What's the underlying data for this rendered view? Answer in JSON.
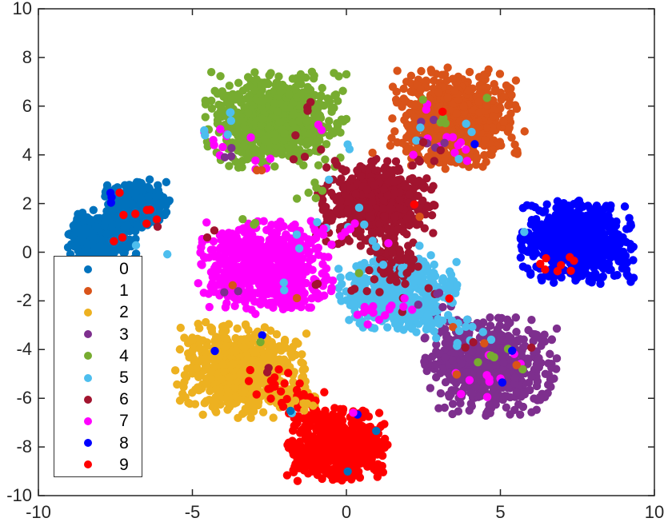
{
  "figure": {
    "background_color": "#ffffff",
    "axis_color": "#262626",
    "legend_border_color": "#333333",
    "legend_background": "#ffffff"
  },
  "chart_data": {
    "type": "scatter",
    "title": "",
    "xlabel": "",
    "ylabel": "",
    "xlim": [
      -10,
      10
    ],
    "ylim": [
      -10,
      10
    ],
    "x_ticks": [
      -10,
      -5,
      0,
      5,
      10
    ],
    "y_ticks": [
      -10,
      -8,
      -6,
      -4,
      -2,
      0,
      2,
      4,
      6,
      8,
      10
    ],
    "grid": false,
    "marker_radius_px": 5.2,
    "legend": {
      "position": "lower-left",
      "entries": [
        {
          "label": "0",
          "color": "#0072BD"
        },
        {
          "label": "1",
          "color": "#D95319"
        },
        {
          "label": "2",
          "color": "#EDB120"
        },
        {
          "label": "3",
          "color": "#7E2F8E"
        },
        {
          "label": "4",
          "color": "#77AC30"
        },
        {
          "label": "5",
          "color": "#4DBEEE"
        },
        {
          "label": "6",
          "color": "#A2142F"
        },
        {
          "label": "7",
          "color": "#FF00FF"
        },
        {
          "label": "8",
          "color": "#0000FF"
        },
        {
          "label": "9",
          "color": "#FF0000"
        }
      ]
    },
    "class_colors": [
      "#0072BD",
      "#D95319",
      "#EDB120",
      "#7E2F8E",
      "#77AC30",
      "#4DBEEE",
      "#A2142F",
      "#FF00FF",
      "#0000FF",
      "#FF0000"
    ],
    "clusters": [
      {
        "cls": 0,
        "center": [
          -7.92,
          0.65
        ],
        "sigma": [
          0.52,
          0.55
        ],
        "n": 330
      },
      {
        "cls": 0,
        "center": [
          -6.78,
          2.0
        ],
        "sigma": [
          0.5,
          0.46
        ],
        "n": 300
      },
      {
        "cls": 1,
        "center": [
          3.6,
          5.5
        ],
        "sigma": [
          1.0,
          0.95
        ],
        "n": 660
      },
      {
        "cls": 2,
        "center": [
          -3.4,
          -4.85
        ],
        "sigma": [
          0.98,
          0.9
        ],
        "n": 640
      },
      {
        "cls": 2,
        "center": [
          -1.45,
          -6.15
        ],
        "sigma": [
          0.45,
          0.33
        ],
        "n": 10
      },
      {
        "cls": 3,
        "center": [
          4.65,
          -4.7
        ],
        "sigma": [
          1.0,
          0.92
        ],
        "n": 620
      },
      {
        "cls": 3,
        "center": [
          3.3,
          -3.05
        ],
        "sigma": [
          0.5,
          0.4
        ],
        "n": 12
      },
      {
        "cls": 4,
        "center": [
          -2.29,
          5.45
        ],
        "sigma": [
          1.05,
          0.92
        ],
        "n": 670
      },
      {
        "cls": 5,
        "center": [
          1.66,
          -1.7
        ],
        "sigma": [
          0.88,
          0.72
        ],
        "n": 540
      },
      {
        "cls": 5,
        "center": [
          3.3,
          -3.0
        ],
        "sigma": [
          0.45,
          0.35
        ],
        "n": 14
      },
      {
        "cls": 6,
        "center": [
          0.9,
          2.05
        ],
        "sigma": [
          0.9,
          0.82
        ],
        "n": 640
      },
      {
        "cls": 6,
        "center": [
          1.45,
          -0.2
        ],
        "sigma": [
          0.38,
          0.55
        ],
        "n": 55
      },
      {
        "cls": 7,
        "center": [
          -2.62,
          -0.65
        ],
        "sigma": [
          1.0,
          0.88
        ],
        "n": 670
      },
      {
        "cls": 8,
        "center": [
          7.51,
          0.4
        ],
        "sigma": [
          0.85,
          0.82
        ],
        "n": 640
      },
      {
        "cls": 9,
        "center": [
          -0.34,
          -7.9
        ],
        "sigma": [
          0.77,
          0.7
        ],
        "n": 640
      },
      {
        "cls": 9,
        "center": [
          -1.45,
          -6.2
        ],
        "sigma": [
          0.5,
          0.4
        ],
        "n": 28
      }
    ],
    "impurity_groups": [
      {
        "cls": 9,
        "center": [
          -6.9,
          1.5
        ],
        "sigma": [
          0.45,
          0.55
        ],
        "n": 9
      },
      {
        "cls": 8,
        "center": [
          -7.7,
          2.2
        ],
        "sigma": [
          0.15,
          0.15
        ],
        "n": 3
      },
      {
        "cls": 6,
        "center": [
          -6.1,
          1.05
        ],
        "sigma": [
          0.05,
          0.05
        ],
        "n": 1
      },
      {
        "cls": 5,
        "center": [
          -5.9,
          -0.1
        ],
        "sigma": [
          0.05,
          0.05
        ],
        "n": 1
      },
      {
        "cls": 5,
        "center": [
          -6.8,
          0.3
        ],
        "sigma": [
          0.05,
          0.05
        ],
        "n": 1
      },
      {
        "cls": 7,
        "center": [
          -3.9,
          4.8
        ],
        "sigma": [
          0.45,
          0.65
        ],
        "n": 9
      },
      {
        "cls": 7,
        "center": [
          -2.3,
          3.75
        ],
        "sigma": [
          0.45,
          0.25
        ],
        "n": 4
      },
      {
        "cls": 7,
        "center": [
          -0.9,
          5.3
        ],
        "sigma": [
          0.15,
          0.25
        ],
        "n": 2
      },
      {
        "cls": 5,
        "center": [
          -4.1,
          5.1
        ],
        "sigma": [
          0.35,
          0.5
        ],
        "n": 6
      },
      {
        "cls": 5,
        "center": [
          0.1,
          4.3
        ],
        "sigma": [
          0.15,
          0.2
        ],
        "n": 2
      },
      {
        "cls": 6,
        "center": [
          -1.3,
          5.1
        ],
        "sigma": [
          0.4,
          0.8
        ],
        "n": 7
      },
      {
        "cls": 3,
        "center": [
          -4.0,
          3.9
        ],
        "sigma": [
          0.28,
          0.28
        ],
        "n": 3
      },
      {
        "cls": 1,
        "center": [
          -2.55,
          3.45
        ],
        "sigma": [
          0.3,
          0.18
        ],
        "n": 2
      },
      {
        "cls": 7,
        "center": [
          3.3,
          4.2
        ],
        "sigma": [
          0.6,
          0.3
        ],
        "n": 10
      },
      {
        "cls": 7,
        "center": [
          2.6,
          6.0
        ],
        "sigma": [
          0.15,
          0.15
        ],
        "n": 2
      },
      {
        "cls": 3,
        "center": [
          2.75,
          4.75
        ],
        "sigma": [
          0.45,
          0.65
        ],
        "n": 6
      },
      {
        "cls": 5,
        "center": [
          3.1,
          4.75
        ],
        "sigma": [
          0.55,
          0.5
        ],
        "n": 5
      },
      {
        "cls": 4,
        "center": [
          3.3,
          5.0
        ],
        "sigma": [
          0.8,
          0.7
        ],
        "n": 5
      },
      {
        "cls": 6,
        "center": [
          2.9,
          4.35
        ],
        "sigma": [
          0.25,
          0.25
        ],
        "n": 2
      },
      {
        "cls": 9,
        "center": [
          3.1,
          5.85
        ],
        "sigma": [
          0.05,
          0.05
        ],
        "n": 1
      },
      {
        "cls": 8,
        "center": [
          4.2,
          4.5
        ],
        "sigma": [
          0.05,
          0.05
        ],
        "n": 1
      },
      {
        "cls": 5,
        "center": [
          0.3,
          1.05
        ],
        "sigma": [
          0.45,
          0.55
        ],
        "n": 5
      },
      {
        "cls": 5,
        "center": [
          -0.65,
          2.9
        ],
        "sigma": [
          0.08,
          0.08
        ],
        "n": 1
      },
      {
        "cls": 5,
        "center": [
          -1.05,
          1.2
        ],
        "sigma": [
          0.08,
          0.08
        ],
        "n": 1
      },
      {
        "cls": 5,
        "center": [
          1.3,
          -0.1
        ],
        "sigma": [
          0.5,
          0.4
        ],
        "n": 6
      },
      {
        "cls": 4,
        "center": [
          -0.9,
          2.5
        ],
        "sigma": [
          0.22,
          0.35
        ],
        "n": 4
      },
      {
        "cls": 7,
        "center": [
          -0.1,
          1.05
        ],
        "sigma": [
          0.45,
          0.2
        ],
        "n": 5
      },
      {
        "cls": 7,
        "center": [
          1.35,
          0.4
        ],
        "sigma": [
          0.05,
          0.05
        ],
        "n": 1
      },
      {
        "cls": 9,
        "center": [
          2.2,
          2.0
        ],
        "sigma": [
          0.05,
          0.05
        ],
        "n": 1
      },
      {
        "cls": 1,
        "center": [
          0.85,
          4.1
        ],
        "sigma": [
          0.05,
          0.05
        ],
        "n": 1
      },
      {
        "cls": 1,
        "center": [
          2.3,
          1.4
        ],
        "sigma": [
          0.05,
          0.05
        ],
        "n": 1
      },
      {
        "cls": 4,
        "center": [
          -1.2,
          2.45
        ],
        "sigma": [
          0.05,
          0.05
        ],
        "n": 1
      },
      {
        "cls": 4,
        "center": [
          -1.6,
          2.15
        ],
        "sigma": [
          0.05,
          0.05
        ],
        "n": 1
      },
      {
        "cls": 4,
        "center": [
          -3.0,
          1.15
        ],
        "sigma": [
          0.45,
          0.15
        ],
        "n": 3
      },
      {
        "cls": 5,
        "center": [
          -1.7,
          0.4
        ],
        "sigma": [
          0.15,
          0.15
        ],
        "n": 2
      },
      {
        "cls": 5,
        "center": [
          -2.0,
          -1.35
        ],
        "sigma": [
          0.15,
          0.15
        ],
        "n": 2
      },
      {
        "cls": 6,
        "center": [
          -4.35,
          0.55
        ],
        "sigma": [
          0.1,
          0.2
        ],
        "n": 2
      },
      {
        "cls": 6,
        "center": [
          -1.05,
          -1.25
        ],
        "sigma": [
          0.1,
          0.1
        ],
        "n": 2
      },
      {
        "cls": 3,
        "center": [
          -3.8,
          -1.35
        ],
        "sigma": [
          0.15,
          0.15
        ],
        "n": 2
      },
      {
        "cls": 1,
        "center": [
          -3.6,
          -1.45
        ],
        "sigma": [
          0.05,
          0.05
        ],
        "n": 1
      },
      {
        "cls": 1,
        "center": [
          -1.6,
          -1.95
        ],
        "sigma": [
          0.05,
          0.05
        ],
        "n": 1
      },
      {
        "cls": 9,
        "center": [
          6.8,
          -0.5
        ],
        "sigma": [
          0.4,
          0.28
        ],
        "n": 8
      },
      {
        "cls": 5,
        "center": [
          5.8,
          0.8
        ],
        "sigma": [
          0.05,
          0.05
        ],
        "n": 1
      },
      {
        "cls": 6,
        "center": [
          1.7,
          -1.35
        ],
        "sigma": [
          0.8,
          0.55
        ],
        "n": 13
      },
      {
        "cls": 7,
        "center": [
          1.4,
          -2.4
        ],
        "sigma": [
          0.75,
          0.28
        ],
        "n": 16
      },
      {
        "cls": 3,
        "center": [
          2.7,
          -2.1
        ],
        "sigma": [
          0.28,
          0.45
        ],
        "n": 4
      },
      {
        "cls": 9,
        "center": [
          3.4,
          -1.9
        ],
        "sigma": [
          0.05,
          0.05
        ],
        "n": 1
      },
      {
        "cls": 4,
        "center": [
          0.35,
          -0.85
        ],
        "sigma": [
          0.05,
          0.05
        ],
        "n": 1
      },
      {
        "cls": 1,
        "center": [
          3.45,
          -3.0
        ],
        "sigma": [
          0.05,
          0.05
        ],
        "n": 1
      },
      {
        "cls": 5,
        "center": [
          3.9,
          -3.6
        ],
        "sigma": [
          0.45,
          0.28
        ],
        "n": 7
      },
      {
        "cls": 7,
        "center": [
          4.3,
          -5.2
        ],
        "sigma": [
          0.75,
          0.45
        ],
        "n": 9
      },
      {
        "cls": 7,
        "center": [
          5.5,
          -4.3
        ],
        "sigma": [
          0.2,
          0.2
        ],
        "n": 2
      },
      {
        "cls": 4,
        "center": [
          4.8,
          -4.7
        ],
        "sigma": [
          0.65,
          0.55
        ],
        "n": 5
      },
      {
        "cls": 8,
        "center": [
          5.38,
          -4.0
        ],
        "sigma": [
          0.05,
          0.05
        ],
        "n": 1
      },
      {
        "cls": 8,
        "center": [
          5.12,
          -5.4
        ],
        "sigma": [
          0.05,
          0.05
        ],
        "n": 1
      },
      {
        "cls": 6,
        "center": [
          4.0,
          -3.9
        ],
        "sigma": [
          0.2,
          0.2
        ],
        "n": 2
      },
      {
        "cls": 6,
        "center": [
          5.9,
          -4.0
        ],
        "sigma": [
          0.05,
          0.05
        ],
        "n": 1
      },
      {
        "cls": 1,
        "center": [
          4.5,
          -3.8
        ],
        "sigma": [
          0.05,
          0.05
        ],
        "n": 1
      },
      {
        "cls": 1,
        "center": [
          5.6,
          -4.6
        ],
        "sigma": [
          0.05,
          0.05
        ],
        "n": 1
      },
      {
        "cls": 1,
        "center": [
          3.6,
          -5.0
        ],
        "sigma": [
          0.05,
          0.05
        ],
        "n": 1
      },
      {
        "cls": 9,
        "center": [
          -2.6,
          -5.3
        ],
        "sigma": [
          0.55,
          0.5
        ],
        "n": 12
      },
      {
        "cls": 8,
        "center": [
          -4.35,
          -4.0
        ],
        "sigma": [
          0.05,
          0.05
        ],
        "n": 1
      },
      {
        "cls": 8,
        "center": [
          -2.75,
          -3.5
        ],
        "sigma": [
          0.05,
          0.05
        ],
        "n": 1
      },
      {
        "cls": 4,
        "center": [
          -2.77,
          -3.77
        ],
        "sigma": [
          0.05,
          0.05
        ],
        "n": 1
      },
      {
        "cls": 6,
        "center": [
          -2.5,
          -4.8
        ],
        "sigma": [
          0.1,
          0.1
        ],
        "n": 2
      },
      {
        "cls": 5,
        "center": [
          -1.82,
          -6.6
        ],
        "sigma": [
          0.05,
          0.05
        ],
        "n": 1
      },
      {
        "cls": 2,
        "center": [
          -1.4,
          -6.3
        ],
        "sigma": [
          0.28,
          0.25
        ],
        "n": 5
      },
      {
        "cls": 0,
        "center": [
          -1.8,
          -6.55
        ],
        "sigma": [
          0.05,
          0.05
        ],
        "n": 1
      },
      {
        "cls": 0,
        "center": [
          0.96,
          -7.3
        ],
        "sigma": [
          0.05,
          0.05
        ],
        "n": 1
      },
      {
        "cls": 0,
        "center": [
          0.0,
          -9.0
        ],
        "sigma": [
          0.05,
          0.05
        ],
        "n": 1
      },
      {
        "cls": 8,
        "center": [
          0.39,
          -6.7
        ],
        "sigma": [
          0.05,
          0.05
        ],
        "n": 1
      },
      {
        "cls": 7,
        "center": [
          0.18,
          -6.6
        ],
        "sigma": [
          0.05,
          0.05
        ],
        "n": 1
      }
    ]
  }
}
